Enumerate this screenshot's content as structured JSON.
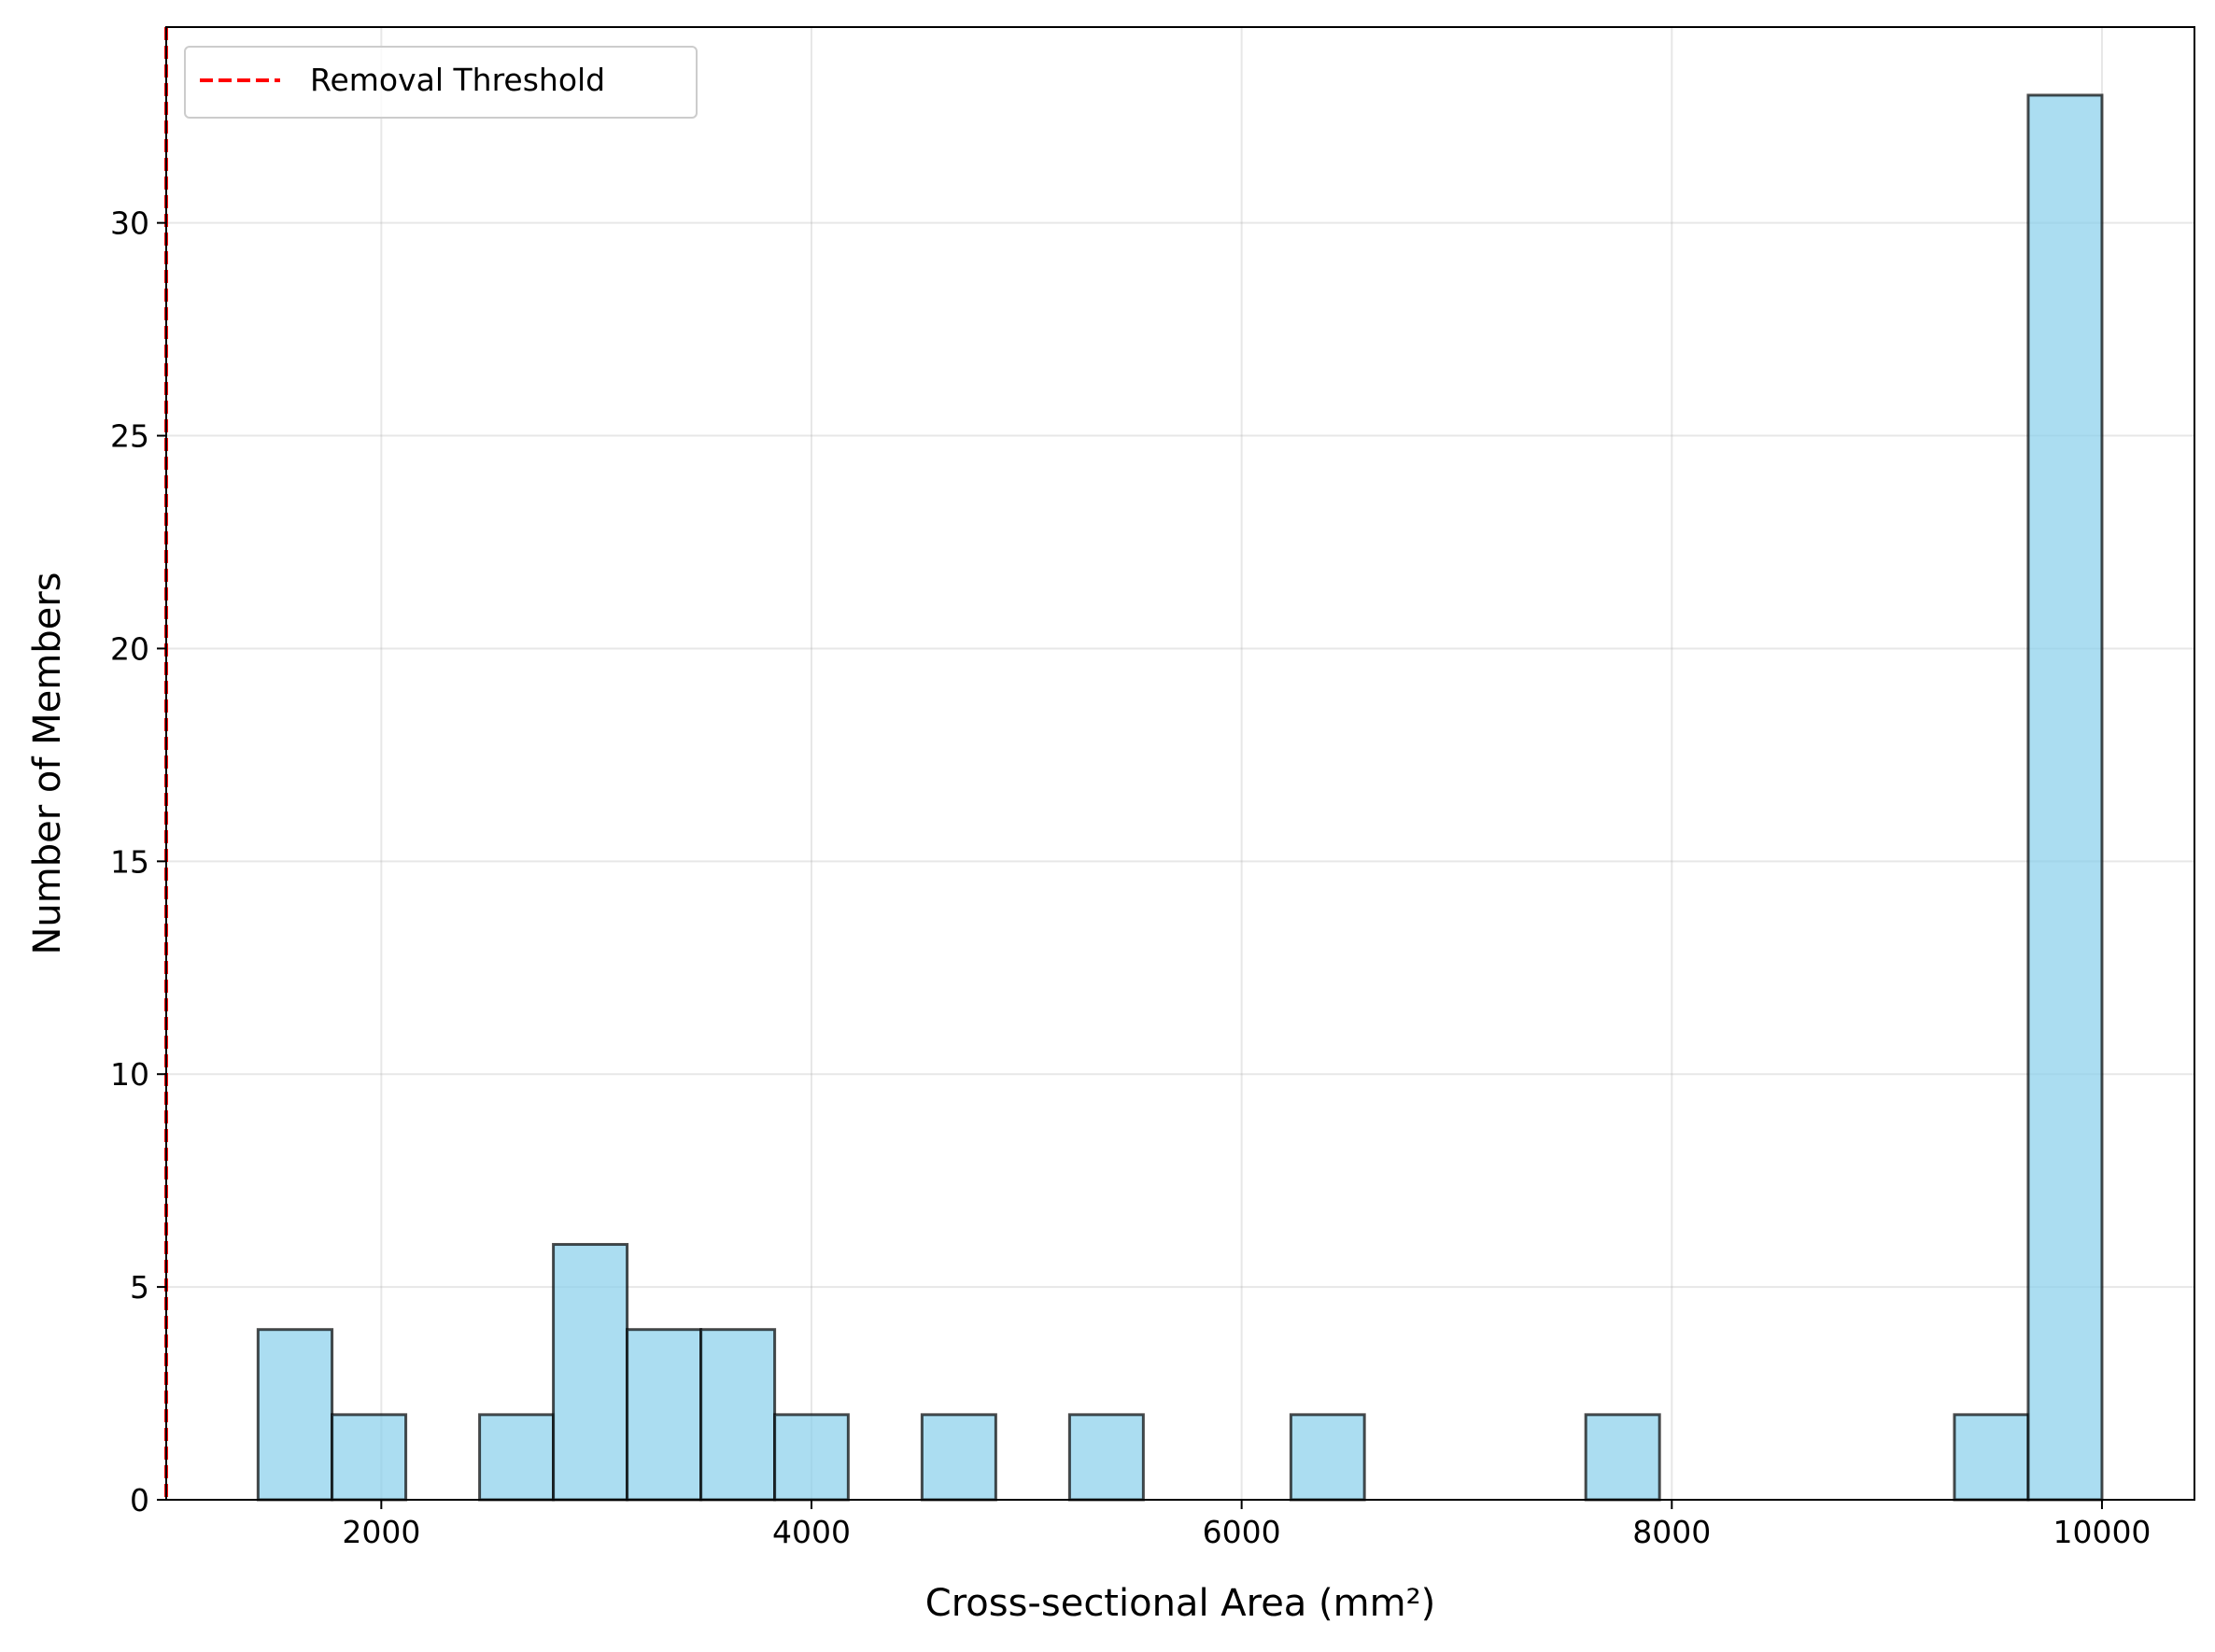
{
  "chart_data": {
    "type": "bar",
    "subtype": "histogram",
    "title": "",
    "xlabel": "Cross-sectional Area (mm²)",
    "ylabel": "Number of Members",
    "xlim": [
      1000,
      10430
    ],
    "ylim": [
      0,
      34.6
    ],
    "xticks": [
      2000,
      4000,
      6000,
      8000,
      10000
    ],
    "yticks": [
      0,
      5,
      10,
      15,
      20,
      25,
      30
    ],
    "grid": true,
    "legend": {
      "position": "top-left",
      "entries": [
        "Removal Threshold"
      ]
    },
    "threshold": {
      "label": "Removal Threshold",
      "x": 1000,
      "color": "#ff0000",
      "style": "dashed"
    },
    "bar_color": "#87ceeb",
    "bar_edge_color": "#000000",
    "bins": [
      {
        "x0": 1427,
        "x1": 1771,
        "count": 4
      },
      {
        "x0": 1771,
        "x1": 2114,
        "count": 2
      },
      {
        "x0": 2114,
        "x1": 2457,
        "count": 0
      },
      {
        "x0": 2457,
        "x1": 2800,
        "count": 2
      },
      {
        "x0": 2800,
        "x1": 3143,
        "count": 6
      },
      {
        "x0": 3143,
        "x1": 3486,
        "count": 4
      },
      {
        "x0": 3486,
        "x1": 3829,
        "count": 4
      },
      {
        "x0": 3829,
        "x1": 4171,
        "count": 2
      },
      {
        "x0": 4171,
        "x1": 4514,
        "count": 0
      },
      {
        "x0": 4514,
        "x1": 4857,
        "count": 2
      },
      {
        "x0": 4857,
        "x1": 5200,
        "count": 0
      },
      {
        "x0": 5200,
        "x1": 5543,
        "count": 2
      },
      {
        "x0": 5543,
        "x1": 5886,
        "count": 0
      },
      {
        "x0": 5886,
        "x1": 6229,
        "count": 0
      },
      {
        "x0": 6229,
        "x1": 6571,
        "count": 2
      },
      {
        "x0": 6571,
        "x1": 6914,
        "count": 0
      },
      {
        "x0": 6914,
        "x1": 7257,
        "count": 0
      },
      {
        "x0": 7257,
        "x1": 7600,
        "count": 0
      },
      {
        "x0": 7600,
        "x1": 7943,
        "count": 2
      },
      {
        "x0": 7943,
        "x1": 8286,
        "count": 0
      },
      {
        "x0": 8286,
        "x1": 8629,
        "count": 0
      },
      {
        "x0": 8629,
        "x1": 8971,
        "count": 0
      },
      {
        "x0": 8971,
        "x1": 9314,
        "count": 0
      },
      {
        "x0": 9314,
        "x1": 9657,
        "count": 2
      },
      {
        "x0": 9657,
        "x1": 10000,
        "count": 33
      }
    ]
  }
}
